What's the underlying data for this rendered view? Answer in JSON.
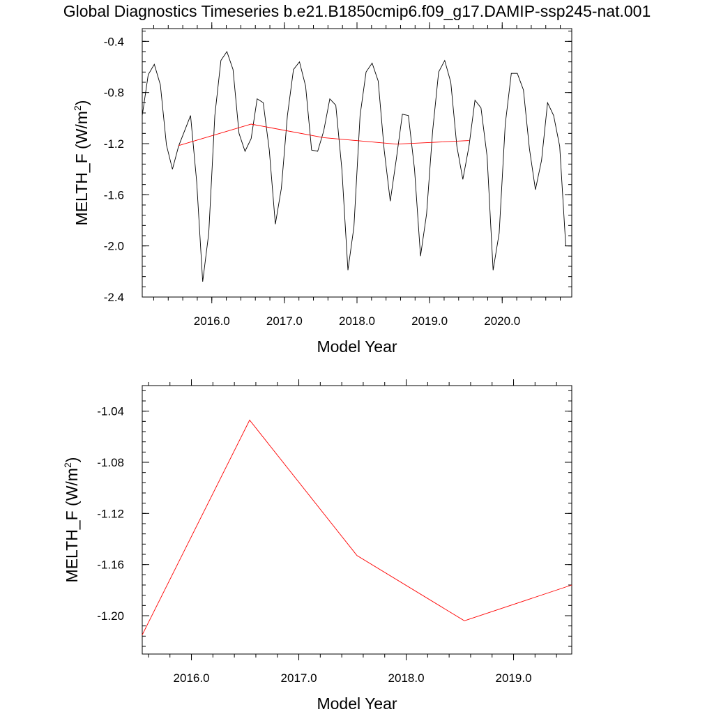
{
  "figure": {
    "title": "Global Diagnostics Timeseries b.e21.B1850cmip6.f09_g17.DAMIP-ssp245-nat.001"
  },
  "chart_data": [
    {
      "type": "line",
      "xlabel": "Model Year",
      "ylabel": "MELTH_F (W/m",
      "ylabel_superscript": "2",
      "ylabel_close": ")",
      "xlim": [
        2015.042,
        2020.958
      ],
      "ylim": [
        -2.4,
        -0.3
      ],
      "xticks": [
        2016.0,
        2017.0,
        2018.0,
        2019.0,
        2020.0
      ],
      "xtick_labels": [
        "2016.0",
        "2017.0",
        "2018.0",
        "2019.0",
        "2020.0"
      ],
      "yticks": [
        -2.4,
        -2.0,
        -1.6,
        -1.2,
        -0.8,
        -0.4
      ],
      "ytick_labels": [
        "-2.4",
        "-2.0",
        "-1.6",
        "-1.2",
        "-0.8",
        "-0.4"
      ],
      "series": [
        {
          "color": "#000000",
          "x": [
            2015.042,
            2015.125,
            2015.208,
            2015.292,
            2015.375,
            2015.458,
            2015.542,
            2015.625,
            2015.708,
            2015.792,
            2015.875,
            2015.958,
            2016.042,
            2016.125,
            2016.208,
            2016.292,
            2016.375,
            2016.458,
            2016.542,
            2016.625,
            2016.708,
            2016.792,
            2016.875,
            2016.958,
            2017.042,
            2017.125,
            2017.208,
            2017.292,
            2017.375,
            2017.458,
            2017.542,
            2017.625,
            2017.708,
            2017.792,
            2017.875,
            2017.958,
            2018.042,
            2018.125,
            2018.208,
            2018.292,
            2018.375,
            2018.458,
            2018.542,
            2018.625,
            2018.708,
            2018.792,
            2018.875,
            2018.958,
            2019.042,
            2019.125,
            2019.208,
            2019.292,
            2019.375,
            2019.458,
            2019.542,
            2019.625,
            2019.708,
            2019.792,
            2019.875,
            2019.958,
            2020.042,
            2020.125,
            2020.208,
            2020.292,
            2020.375,
            2020.458,
            2020.542,
            2020.625,
            2020.708,
            2020.792,
            2020.875,
            2020.958
          ],
          "y": [
            -0.98,
            -0.66,
            -0.58,
            -0.74,
            -1.21,
            -1.4,
            -1.22,
            -1.1,
            -0.98,
            -1.5,
            -2.28,
            -1.9,
            -0.98,
            -0.55,
            -0.48,
            -0.62,
            -1.12,
            -1.26,
            -1.16,
            -0.85,
            -0.88,
            -1.25,
            -1.83,
            -1.55,
            -0.98,
            -0.62,
            -0.56,
            -0.75,
            -1.25,
            -1.26,
            -1.1,
            -0.85,
            -0.9,
            -1.4,
            -2.19,
            -1.85,
            -0.98,
            -0.64,
            -0.57,
            -0.71,
            -1.25,
            -1.65,
            -1.32,
            -0.97,
            -0.98,
            -1.4,
            -2.08,
            -1.75,
            -1.1,
            -0.64,
            -0.55,
            -0.72,
            -1.22,
            -1.48,
            -1.22,
            -0.86,
            -0.92,
            -1.3,
            -2.19,
            -1.9,
            -1.05,
            -0.65,
            -0.65,
            -0.78,
            -1.24,
            -1.56,
            -1.33,
            -0.88,
            -0.98,
            -1.22,
            -2.0,
            -2.0
          ]
        },
        {
          "color": "#ff0000",
          "x": [
            2015.542,
            2016.542,
            2017.542,
            2018.542,
            2019.542
          ],
          "y": [
            -1.215,
            -1.047,
            -1.153,
            -1.204,
            -1.176
          ]
        }
      ]
    },
    {
      "type": "line",
      "xlabel": "Model Year",
      "ylabel": "MELTH_F (W/m",
      "ylabel_superscript": "2",
      "ylabel_close": ")",
      "xlim": [
        2015.542,
        2019.542
      ],
      "ylim": [
        -1.23,
        -1.02
      ],
      "xticks": [
        2016.0,
        2017.0,
        2018.0,
        2019.0
      ],
      "xtick_labels": [
        "2016.0",
        "2017.0",
        "2018.0",
        "2019.0"
      ],
      "yticks": [
        -1.2,
        -1.16,
        -1.12,
        -1.08,
        -1.04
      ],
      "ytick_labels": [
        "-1.20",
        "-1.16",
        "-1.12",
        "-1.08",
        "-1.04"
      ],
      "series": [
        {
          "color": "#ff0000",
          "x": [
            2015.542,
            2016.542,
            2017.542,
            2018.542,
            2019.542
          ],
          "y": [
            -1.215,
            -1.047,
            -1.153,
            -1.204,
            -1.176
          ]
        }
      ]
    }
  ]
}
